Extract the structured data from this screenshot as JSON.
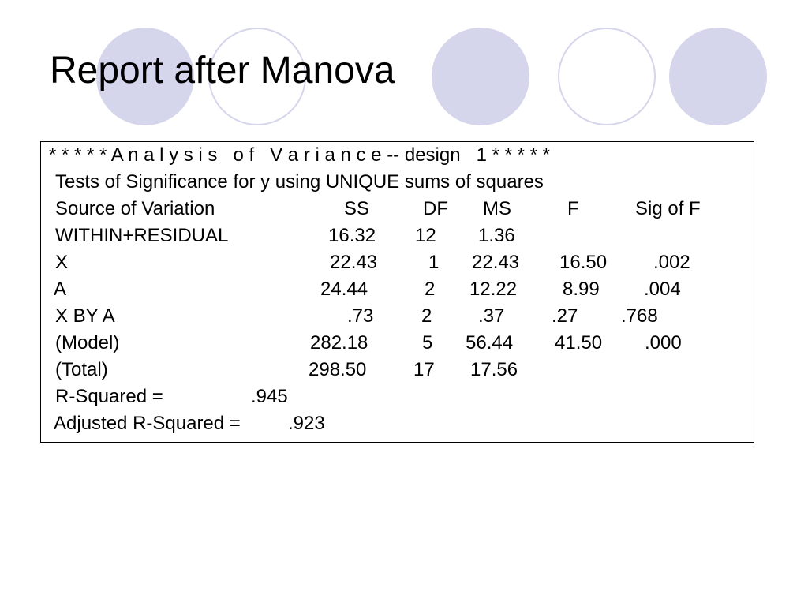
{
  "title": "Report after Manova",
  "report": {
    "header_line": "* * * * * A n a l y s i s   o f   V a r i a n c e -- design   1 * * * * *",
    "tests_line": "Tests of Significance for y using UNIQUE sums of squares",
    "columns": {
      "source": "Source of Variation",
      "ss": "SS",
      "df": "DF",
      "ms": "MS",
      "f": "F",
      "sig": "Sig of F"
    },
    "rows": [
      {
        "source": "WITHIN+RESIDUAL",
        "ss": "16.32",
        "df": "12",
        "ms": "1.36",
        "f": "",
        "sig": ""
      },
      {
        "source": "X",
        "ss": "22.43",
        "df": "1",
        "ms": "22.43",
        "f": "16.50",
        "sig": ".002"
      },
      {
        "source": "A",
        "ss": "24.44",
        "df": "2",
        "ms": "12.22",
        "f": "8.99",
        "sig": ".004"
      },
      {
        "source": "X BY A",
        "ss": ".73",
        "df": "2",
        "ms": ".37",
        "f": ".27",
        "sig": ".768"
      },
      {
        "source": "(Model)",
        "ss": "282.18",
        "df": "5",
        "ms": "56.44",
        "f": "41.50",
        "sig": ".000"
      },
      {
        "source": "(Total)",
        "ss": "298.50",
        "df": "17",
        "ms": "17.56",
        "f": "",
        "sig": ""
      }
    ],
    "r_squared_label": "R-Squared =",
    "r_squared_value": ".945",
    "adj_r_squared_label": "Adjusted R-Squared =",
    "adj_r_squared_value": ".923"
  },
  "decoration": {
    "circle_color": "#d5d5eb"
  }
}
